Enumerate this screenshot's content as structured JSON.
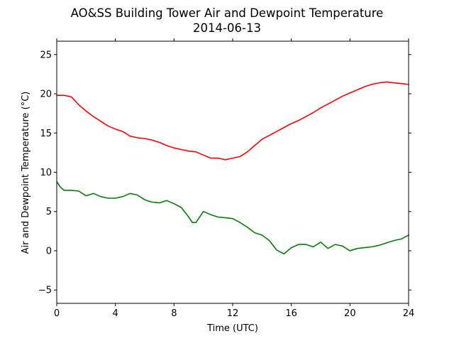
{
  "chart_data": {
    "type": "line",
    "title_line1": "AO&SS Building Tower Air and Dewpoint Temperature",
    "title_line2": "2014-06-13",
    "xlabel": "Time (UTC)",
    "ylabel": "Air and Dewpoint Temperature (°C)",
    "xlim": [
      0,
      24
    ],
    "ylim": [
      -6.7,
      26.7
    ],
    "xticks": [
      0,
      4,
      8,
      12,
      16,
      20,
      24
    ],
    "yticks": [
      -5,
      0,
      5,
      10,
      15,
      20,
      25
    ],
    "grid": false,
    "legend": "none",
    "series": [
      {
        "color": "#ff0000",
        "x": [
          0,
          0.5,
          1,
          1.5,
          2,
          2.5,
          3,
          3.5,
          4,
          4.5,
          5,
          5.5,
          6,
          6.5,
          7,
          7.5,
          8,
          8.5,
          9,
          9.5,
          10,
          10.5,
          11,
          11.5,
          12,
          12.5,
          13,
          13.5,
          14,
          14.5,
          15,
          15.5,
          16,
          16.5,
          17,
          17.5,
          18,
          18.5,
          19,
          19.5,
          20,
          20.5,
          21,
          21.5,
          22,
          22.5,
          23,
          23.5,
          24
        ],
        "y": [
          19.8,
          19.8,
          19.6,
          18.6,
          17.8,
          17.1,
          16.5,
          15.9,
          15.5,
          15.2,
          14.6,
          14.4,
          14.3,
          14.1,
          13.8,
          13.4,
          13.1,
          12.9,
          12.7,
          12.6,
          12.2,
          11.8,
          11.8,
          11.6,
          11.8,
          12.0,
          12.6,
          13.4,
          14.2,
          14.7,
          15.2,
          15.7,
          16.2,
          16.6,
          17.1,
          17.6,
          18.2,
          18.7,
          19.2,
          19.7,
          20.1,
          20.5,
          20.9,
          21.2,
          21.4,
          21.5,
          21.4,
          21.3,
          21.2
        ]
      },
      {
        "color": "#008000",
        "x": [
          0,
          0.25,
          0.5,
          1,
          1.5,
          2,
          2.5,
          3,
          3.5,
          4,
          4.5,
          5,
          5.5,
          6,
          6.5,
          7,
          7.5,
          8,
          8.5,
          9,
          9.25,
          9.5,
          10,
          10.5,
          11,
          11.5,
          12,
          12.5,
          13,
          13.5,
          14,
          14.5,
          15,
          15.5,
          16,
          16.5,
          17,
          17.5,
          18,
          18.5,
          19,
          19.5,
          20,
          20.5,
          21,
          21.5,
          22,
          22.5,
          23,
          23.5,
          24
        ],
        "y": [
          8.8,
          8.1,
          7.7,
          7.7,
          7.6,
          7.0,
          7.3,
          6.9,
          6.7,
          6.7,
          6.9,
          7.3,
          7.1,
          6.5,
          6.2,
          6.1,
          6.4,
          6.0,
          5.5,
          4.3,
          3.6,
          3.6,
          5.0,
          4.6,
          4.3,
          4.2,
          4.1,
          3.6,
          3.0,
          2.3,
          2.0,
          1.3,
          0.1,
          -0.4,
          0.4,
          0.8,
          0.8,
          0.5,
          1.1,
          0.3,
          0.8,
          0.6,
          0.0,
          0.3,
          0.4,
          0.5,
          0.7,
          1.0,
          1.3,
          1.5,
          2.0
        ]
      }
    ]
  }
}
